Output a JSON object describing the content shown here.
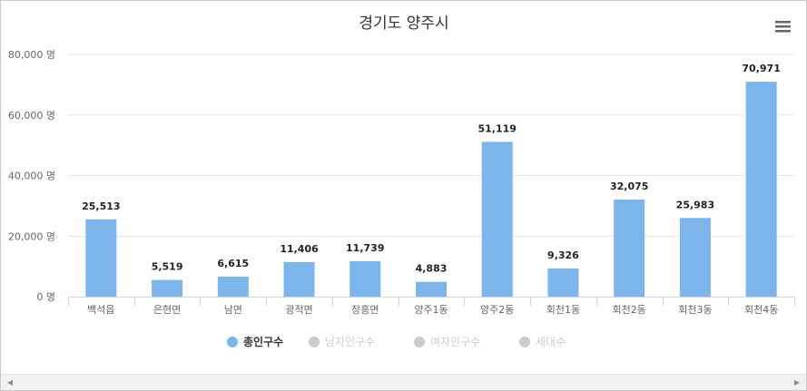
{
  "chart_data": {
    "type": "bar",
    "title": "경기도 양주시",
    "categories": [
      "백석읍",
      "은현면",
      "남면",
      "광적면",
      "장흥면",
      "양주1동",
      "양주2동",
      "회천1동",
      "회천2동",
      "회천3동",
      "회천4동"
    ],
    "series": [
      {
        "name": "총인구수",
        "visible": true,
        "color": "#7cb5ec",
        "values": [
          25513,
          5519,
          6615,
          11406,
          11739,
          4883,
          51119,
          9326,
          32075,
          25983,
          70971
        ]
      }
    ],
    "data_labels": [
      "25,513",
      "5,519",
      "6,615",
      "11,406",
      "11,739",
      "4,883",
      "51,119",
      "9,326",
      "32,075",
      "25,983",
      "70,971"
    ],
    "y_ticks": [
      0,
      20000,
      40000,
      60000,
      80000
    ],
    "y_tick_labels": [
      "0 명",
      "20,000 명",
      "40,000 명",
      "60,000 명",
      "80,000 명"
    ],
    "ylim": [
      0,
      80000
    ],
    "grid": true,
    "legend": {
      "placement": "bottom-center",
      "items": [
        {
          "label": "총인구수",
          "active": true,
          "color": "#7cb5ec"
        },
        {
          "label": "남자인구수",
          "active": false,
          "color": "#cccccc"
        },
        {
          "label": "여자인구수",
          "active": false,
          "color": "#cccccc"
        },
        {
          "label": "세대수",
          "active": false,
          "color": "#cccccc"
        }
      ]
    }
  },
  "toolbar": {
    "menu_icon": "hamburger-menu-icon"
  },
  "scrollbar": {
    "left_icon": "scroll-left-arrow-icon",
    "right_icon": "scroll-right-arrow-icon"
  }
}
